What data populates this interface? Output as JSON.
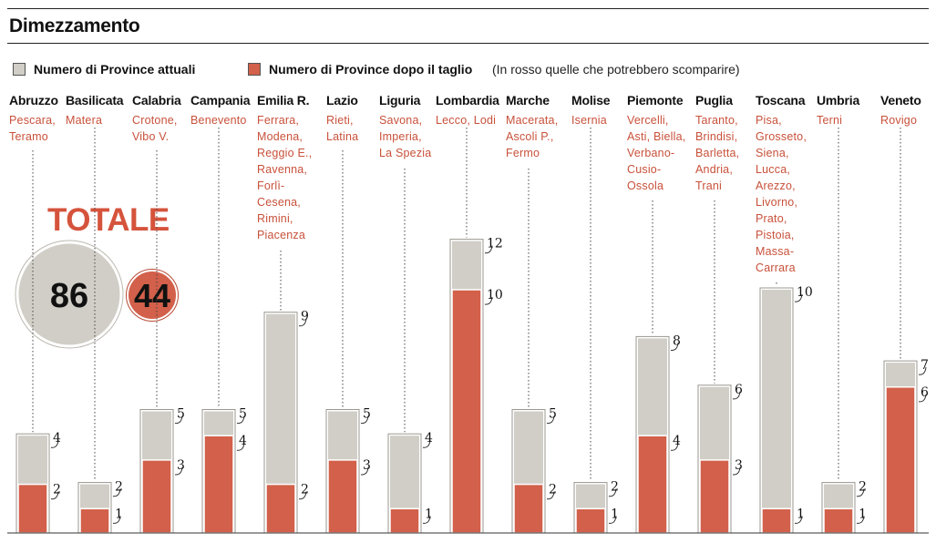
{
  "title": "Dimezzamento",
  "legend": {
    "current_label": "Numero di Province attuali",
    "after_label": "Numero di Province dopo il taglio",
    "note": "(In rosso quelle che potrebbero scomparire)"
  },
  "colors": {
    "current": "#d1cec7",
    "after": "#d2604a",
    "text_red": "#c8513a"
  },
  "totale": {
    "label": "TOTALE",
    "current": "86",
    "after": "44"
  },
  "regions": [
    {
      "name": "Abruzzo",
      "provinces": "Pescara,\nTeramo"
    },
    {
      "name": "Basilicata",
      "provinces": "Matera"
    },
    {
      "name": "Calabria",
      "provinces": "Crotone,\nVibo V."
    },
    {
      "name": "Campania",
      "provinces": "Benevento"
    },
    {
      "name": "Emilia R.",
      "provinces": "Ferrara,\nModena,\nReggio E.,\nRavenna,\nForlì-\nCesena,\nRimini,\nPiacenza"
    },
    {
      "name": "Lazio",
      "provinces": "Rieti,\nLatina"
    },
    {
      "name": "Liguria",
      "provinces": "Savona,\nImperia,\nLa Spezia"
    },
    {
      "name": "Lombardia",
      "provinces": "Lecco, Lodi"
    },
    {
      "name": "Marche",
      "provinces": "Macerata,\nAscoli P.,\nFermo"
    },
    {
      "name": "Molise",
      "provinces": "Isernia"
    },
    {
      "name": "Piemonte",
      "provinces": "Vercelli,\nAsti, Biella,\nVerbano-\nCusio-\nOssola"
    },
    {
      "name": "Puglia",
      "provinces": "Taranto,\nBrindisi,\nBarletta,\nAndria,\nTrani"
    },
    {
      "name": "Toscana",
      "provinces": "Pisa,\nGrosseto,\nSiena,\nLucca,\nArezzo,\nLivorno,\nPrato,\nPistoia,\nMassa-\nCarrara"
    },
    {
      "name": "Umbria",
      "provinces": "Terni"
    },
    {
      "name": "Veneto",
      "provinces": "Rovigo"
    }
  ],
  "chart_data": {
    "type": "bar",
    "title": "Dimezzamento",
    "categories": [
      "Abruzzo",
      "Basilicata",
      "Calabria",
      "Campania",
      "Emilia R.",
      "Lazio",
      "Liguria",
      "Lombardia",
      "Marche",
      "Molise",
      "Piemonte",
      "Puglia",
      "Toscana",
      "Umbria",
      "Veneto"
    ],
    "series": [
      {
        "name": "Numero di Province attuali",
        "values": [
          4,
          2,
          5,
          5,
          9,
          5,
          4,
          12,
          5,
          2,
          8,
          6,
          10,
          2,
          7
        ]
      },
      {
        "name": "Numero di Province dopo il taglio",
        "values": [
          2,
          1,
          3,
          4,
          2,
          3,
          1,
          10,
          2,
          1,
          4,
          3,
          1,
          1,
          6
        ]
      }
    ],
    "ylim": [
      0,
      12
    ],
    "xlabel": "",
    "ylabel": "",
    "grid": false,
    "legend": "top-left"
  }
}
